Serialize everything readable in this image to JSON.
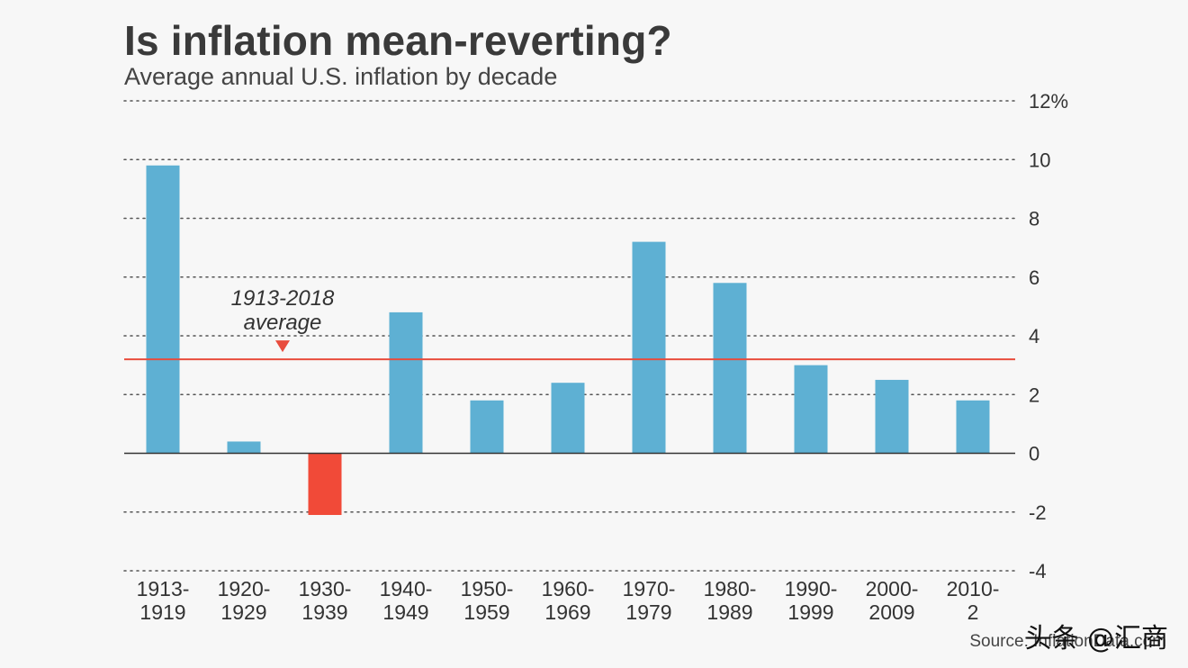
{
  "chart_data": {
    "type": "bar",
    "title": "Is inflation mean-reverting?",
    "subtitle": "Average annual U.S. inflation by decade",
    "categories": [
      [
        "1913-",
        "1919"
      ],
      [
        "1920-",
        "1929"
      ],
      [
        "1930-",
        "1939"
      ],
      [
        "1940-",
        "1949"
      ],
      [
        "1950-",
        "1959"
      ],
      [
        "1960-",
        "1969"
      ],
      [
        "1970-",
        "1979"
      ],
      [
        "1980-",
        "1989"
      ],
      [
        "1990-",
        "1999"
      ],
      [
        "2000-",
        "2009"
      ],
      [
        "2010-",
        "2"
      ]
    ],
    "values": [
      9.8,
      0.4,
      -2.1,
      4.8,
      1.8,
      2.4,
      7.2,
      5.8,
      3.0,
      2.5,
      1.8
    ],
    "ylim": [
      -4,
      12
    ],
    "yticks": [
      -4,
      -2,
      0,
      2,
      4,
      6,
      8,
      10,
      12
    ],
    "ytick_labels": [
      "-4",
      "-2",
      "0",
      "2",
      "4",
      "6",
      "8",
      "10",
      "12%"
    ],
    "grid": true,
    "average": {
      "value": 3.2,
      "label_line1": "1913-2018",
      "label_line2": "average"
    },
    "colors": {
      "positive": "#5eb0d3",
      "negative": "#f14a38",
      "average_line": "#e84c3d",
      "grid": "#555555",
      "axis": "#333333"
    },
    "source": "Source: InflationData.com"
  },
  "watermark": "头条 @汇商"
}
